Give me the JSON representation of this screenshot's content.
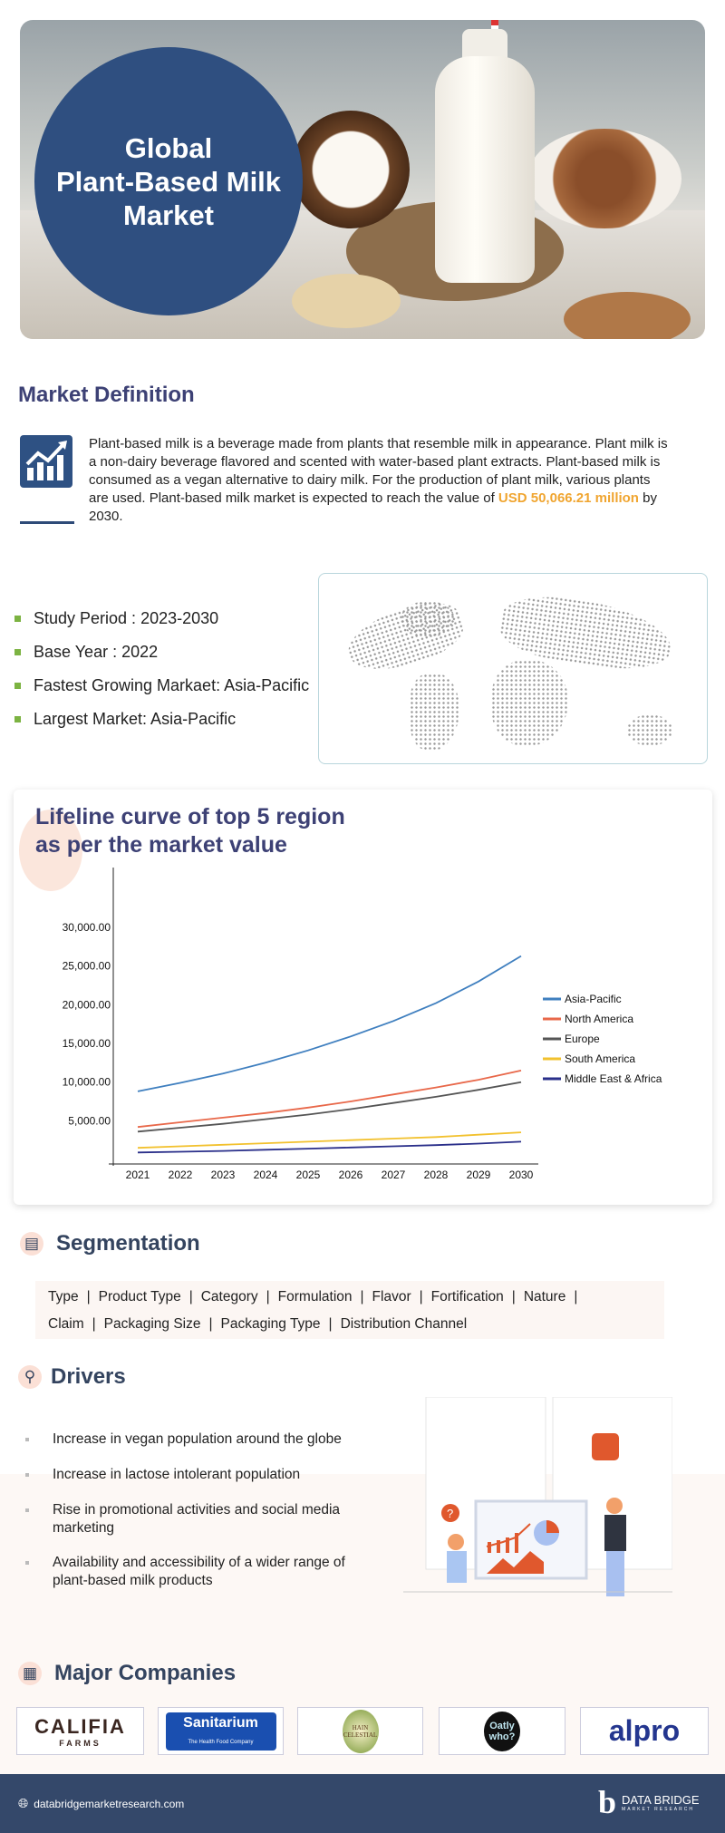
{
  "hero": {
    "title_lines": [
      "Global",
      "Plant-Based Milk",
      "Market"
    ]
  },
  "definition": {
    "heading": "Market Definition",
    "text": "Plant-based milk is a beverage made from plants that resemble milk in appearance. Plant milk is a non-dairy beverage flavored and scented with water-based plant extracts. Plant-based milk is consumed as a vegan alternative to dairy milk. For the production of plant milk, various plants are used. Plant-based milk market is expected to reach the value of ",
    "highlight": "USD  50,066.21 million",
    "suffix": " by 2030."
  },
  "facts": [
    "Study Period : 2023-2030",
    "Base Year : 2022",
    "Fastest Growing Markaet: Asia-Pacific",
    "Largest Market: Asia-Pacific"
  ],
  "chart_data": {
    "type": "line",
    "title": "Lifeline curve of top 5 region as per the market value",
    "title_lines": [
      "Lifeline curve of top 5 region",
      "as per the market value"
    ],
    "x": [
      "2021",
      "2022",
      "2023",
      "2024",
      "2025",
      "2026",
      "2027",
      "2028",
      "2029",
      "2030"
    ],
    "yticks": [
      "5,000.00",
      "10,000.00",
      "15,000.00",
      "20,000.00",
      "25,000.00",
      "30,000.00"
    ],
    "ylim": [
      0,
      33000
    ],
    "legend_position": "right",
    "series": [
      {
        "name": "Asia-Pacific",
        "color": "#3f7fbf",
        "values": [
          8800,
          9900,
          11100,
          12500,
          14100,
          15900,
          17900,
          20200,
          23000,
          26300
        ]
      },
      {
        "name": "North America",
        "color": "#e8684a",
        "values": [
          4200,
          4800,
          5400,
          6000,
          6700,
          7500,
          8400,
          9300,
          10300,
          11500
        ]
      },
      {
        "name": "Europe",
        "color": "#555555",
        "values": [
          3600,
          4100,
          4600,
          5200,
          5800,
          6500,
          7300,
          8100,
          9000,
          10000
        ]
      },
      {
        "name": "South America",
        "color": "#f2c12e",
        "values": [
          1500,
          1700,
          1900,
          2100,
          2300,
          2500,
          2700,
          2900,
          3200,
          3500
        ]
      },
      {
        "name": "Middle East & Africa",
        "color": "#2a2f8a",
        "values": [
          900,
          1000,
          1100,
          1250,
          1400,
          1550,
          1700,
          1850,
          2050,
          2300
        ]
      }
    ]
  },
  "segmentation": {
    "heading": "Segmentation",
    "items": [
      "Type",
      "Product Type",
      "Category",
      "Formulation",
      "Flavor",
      "Fortification",
      "Nature",
      "Claim",
      "Packaging Size",
      "Packaging Type",
      "Distribution Channel"
    ]
  },
  "drivers": {
    "heading": "Drivers",
    "items": [
      "Increase in vegan population around the globe",
      "Increase in lactose intolerant population",
      "Rise in promotional activities and social media marketing",
      "Availability and accessibility of a wider range of plant-based milk products"
    ]
  },
  "companies": {
    "heading": "Major Companies",
    "logos": [
      {
        "name": "CALIFIA",
        "sub": "FARMS"
      },
      {
        "name": "Sanitarium",
        "sub": "The Health Food Company"
      },
      {
        "name": "HAIN",
        "sub": "CELESTIAL"
      },
      {
        "name": "Oatly",
        "sub": "who?"
      },
      {
        "name": "alpro",
        "sub": ""
      }
    ]
  },
  "footer": {
    "website": "databridgemarketresearch.com",
    "brand": "DATA BRIDGE",
    "brand_sub": "MARKET RESEARCH"
  }
}
